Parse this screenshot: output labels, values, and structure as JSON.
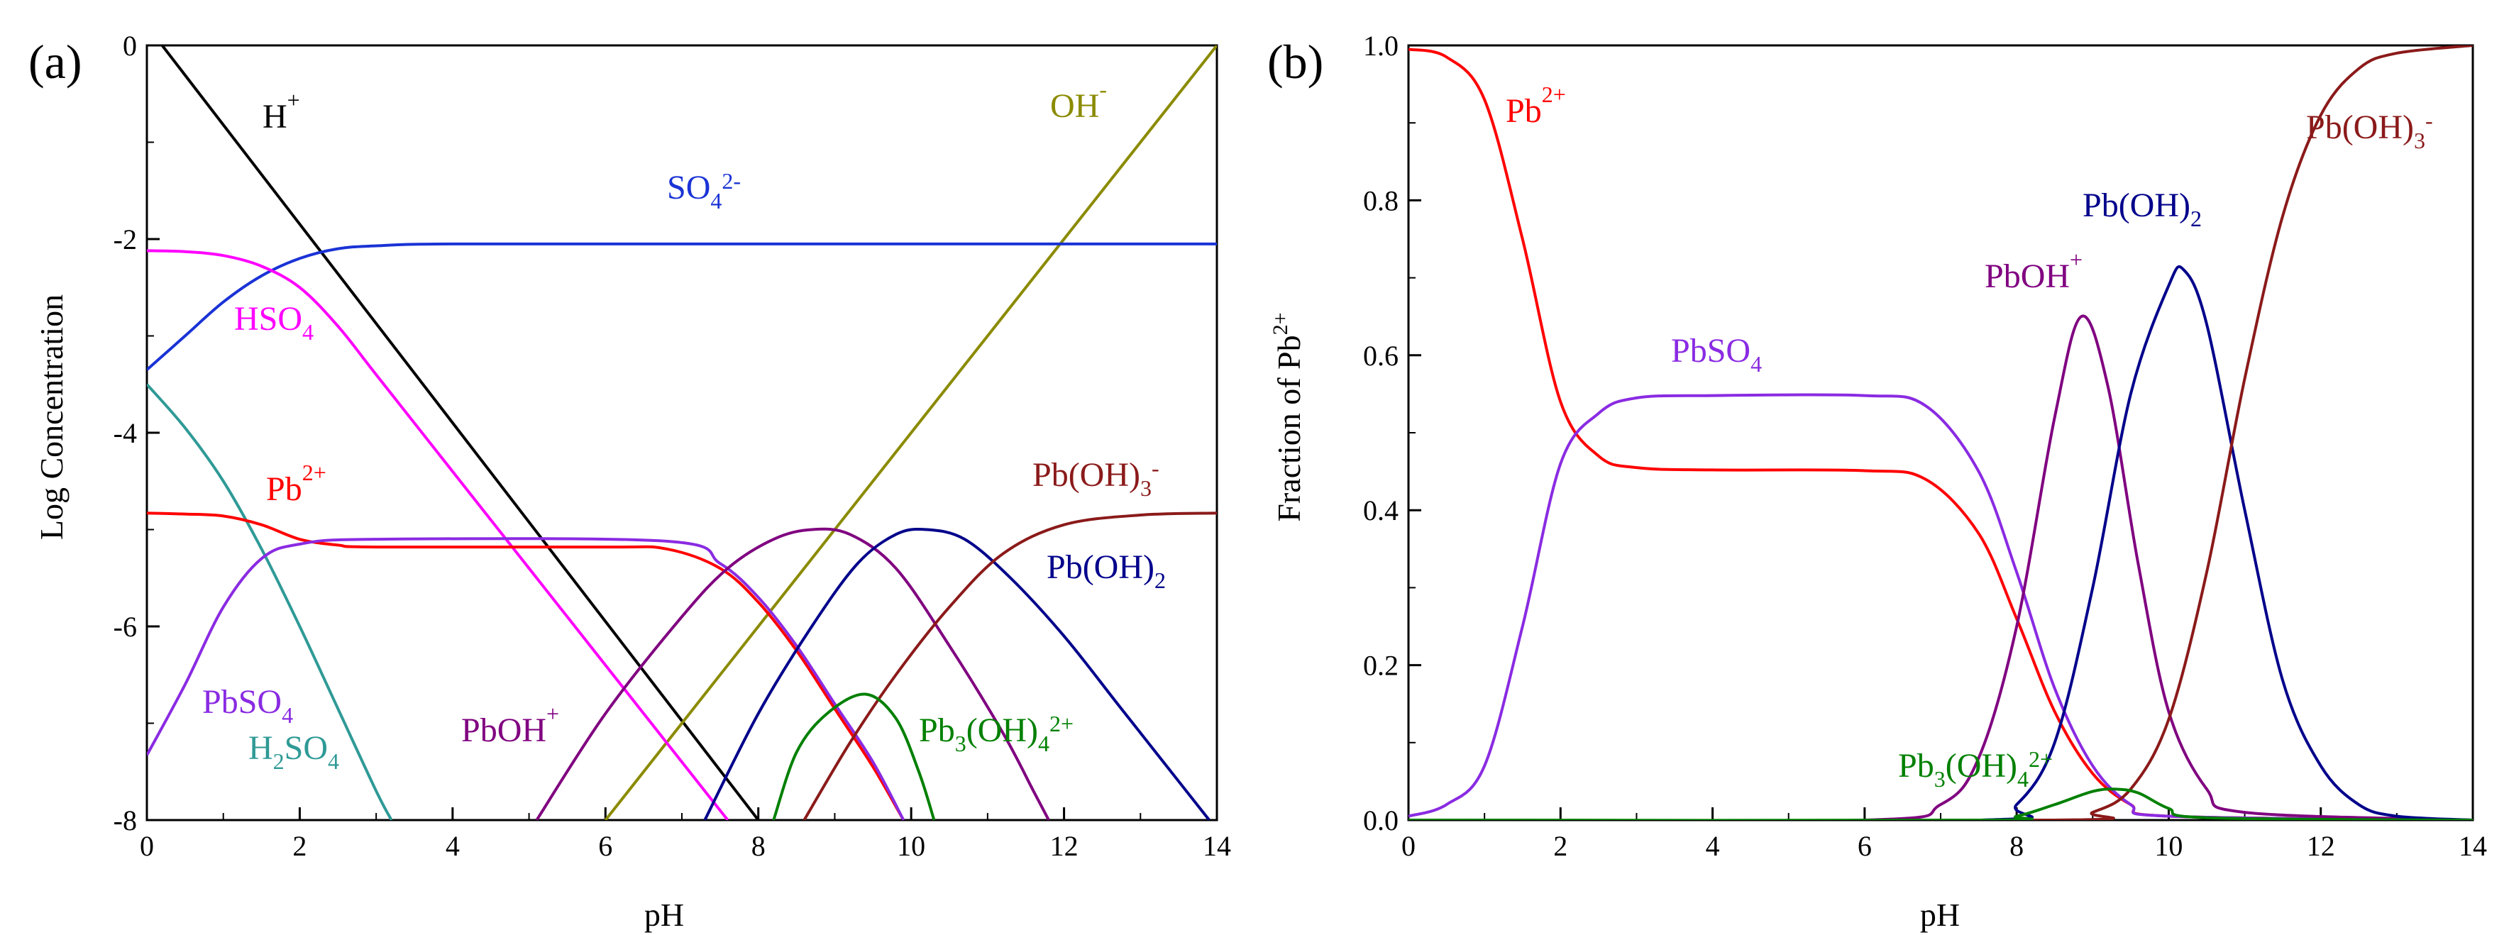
{
  "chart_data": [
    {
      "panel_label": "(a)",
      "type": "line",
      "xlabel": "pH",
      "ylabel": "Log Concentration",
      "xlim": [
        0,
        14
      ],
      "ylim": [
        -8,
        0
      ],
      "xticks": [
        "0",
        "2",
        "4",
        "6",
        "8",
        "10",
        "12",
        "14"
      ],
      "yticks": [
        "0",
        "-2",
        "-4",
        "-6",
        "-8"
      ],
      "series": [
        {
          "name": "H+",
          "label": "H",
          "sup": "+",
          "color": "#000000",
          "points": [
            [
              0.2,
              0
            ],
            [
              8,
              -8
            ]
          ]
        },
        {
          "name": "OH-",
          "label": "OH",
          "sup": "-",
          "color": "#8b8b00",
          "points": [
            [
              6,
              -8
            ],
            [
              14,
              0
            ]
          ]
        },
        {
          "name": "SO4 2-",
          "label": "SO",
          "sub": "4",
          "sup": "2-",
          "color": "#1a33d6",
          "points": [
            [
              0,
              -3.35
            ],
            [
              0.5,
              -3.0
            ],
            [
              1,
              -2.65
            ],
            [
              1.5,
              -2.38
            ],
            [
              2,
              -2.2
            ],
            [
              2.5,
              -2.1
            ],
            [
              3,
              -2.07
            ],
            [
              4,
              -2.05
            ],
            [
              8,
              -2.05
            ],
            [
              14,
              -2.05
            ]
          ]
        },
        {
          "name": "HSO4-",
          "label": "HSO",
          "sub": "4",
          "color": "#ff00ff",
          "points": [
            [
              0,
              -2.12
            ],
            [
              0.5,
              -2.13
            ],
            [
              1,
              -2.17
            ],
            [
              1.5,
              -2.28
            ],
            [
              2,
              -2.5
            ],
            [
              2.5,
              -2.9
            ],
            [
              3,
              -3.4
            ],
            [
              4,
              -4.4
            ],
            [
              5,
              -5.4
            ],
            [
              6,
              -6.4
            ],
            [
              7,
              -7.4
            ],
            [
              7.6,
              -8
            ]
          ]
        },
        {
          "name": "H2SO4",
          "label": "H",
          "sub1": "2",
          "mid": "SO",
          "sub": "4",
          "color": "#2f9a96",
          "points": [
            [
              0,
              -3.5
            ],
            [
              0.5,
              -3.95
            ],
            [
              1,
              -4.5
            ],
            [
              1.5,
              -5.2
            ],
            [
              2,
              -6.0
            ],
            [
              2.5,
              -6.85
            ],
            [
              3,
              -7.7
            ],
            [
              3.2,
              -8
            ]
          ]
        },
        {
          "name": "Pb2+",
          "label": "Pb",
          "sup": "2+",
          "color": "#ff0000",
          "points": [
            [
              0,
              -4.83
            ],
            [
              0.5,
              -4.84
            ],
            [
              1,
              -4.86
            ],
            [
              1.5,
              -4.95
            ],
            [
              2,
              -5.1
            ],
            [
              2.5,
              -5.16
            ],
            [
              3,
              -5.18
            ],
            [
              6,
              -5.18
            ],
            [
              6.8,
              -5.2
            ],
            [
              7.5,
              -5.4
            ],
            [
              8,
              -5.75
            ],
            [
              8.5,
              -6.25
            ],
            [
              9,
              -6.85
            ],
            [
              9.5,
              -7.45
            ],
            [
              9.9,
              -8
            ]
          ]
        },
        {
          "name": "PbSO4",
          "label": "PbSO",
          "sub": "4",
          "color": "#8a2be2",
          "points": [
            [
              0,
              -7.33
            ],
            [
              0.5,
              -6.6
            ],
            [
              1,
              -5.8
            ],
            [
              1.5,
              -5.3
            ],
            [
              2,
              -5.15
            ],
            [
              3,
              -5.1
            ],
            [
              6.8,
              -5.12
            ],
            [
              7.5,
              -5.35
            ],
            [
              8,
              -5.7
            ],
            [
              8.5,
              -6.2
            ],
            [
              9,
              -6.8
            ],
            [
              9.5,
              -7.4
            ],
            [
              9.9,
              -8
            ]
          ]
        },
        {
          "name": "PbOH+",
          "label": "PbOH",
          "sup": "+",
          "color": "#800080",
          "points": [
            [
              5.1,
              -8
            ],
            [
              6,
              -6.9
            ],
            [
              7,
              -5.9
            ],
            [
              7.6,
              -5.4
            ],
            [
              8.2,
              -5.1
            ],
            [
              8.7,
              -5.0
            ],
            [
              9.2,
              -5.05
            ],
            [
              9.8,
              -5.4
            ],
            [
              10.5,
              -6.2
            ],
            [
              11.2,
              -7.1
            ],
            [
              11.6,
              -7.7
            ],
            [
              11.8,
              -8
            ]
          ]
        },
        {
          "name": "Pb(OH)2",
          "label": "Pb(OH)",
          "sub": "2",
          "color": "#00008b",
          "points": [
            [
              7.3,
              -8
            ],
            [
              8,
              -6.9
            ],
            [
              8.7,
              -6.0
            ],
            [
              9.3,
              -5.35
            ],
            [
              9.8,
              -5.05
            ],
            [
              10.2,
              -5.0
            ],
            [
              10.7,
              -5.1
            ],
            [
              11.3,
              -5.5
            ],
            [
              12,
              -6.1
            ],
            [
              12.7,
              -6.8
            ],
            [
              13.3,
              -7.4
            ],
            [
              13.9,
              -8
            ]
          ]
        },
        {
          "name": "Pb(OH)3-",
          "label": "Pb(OH)",
          "sub": "3",
          "sup": "-",
          "color": "#8b1a1a",
          "points": [
            [
              8.6,
              -8
            ],
            [
              9.2,
              -7.2
            ],
            [
              9.8,
              -6.5
            ],
            [
              10.5,
              -5.8
            ],
            [
              11.2,
              -5.25
            ],
            [
              12,
              -4.95
            ],
            [
              13,
              -4.85
            ],
            [
              14,
              -4.83
            ]
          ]
        },
        {
          "name": "Pb3(OH)4 2+",
          "label": "Pb",
          "sub1": "3",
          "mid": "(OH)",
          "sub": "4",
          "sup": "2+",
          "color": "#008000",
          "points": [
            [
              8.2,
              -8
            ],
            [
              8.5,
              -7.3
            ],
            [
              8.9,
              -6.9
            ],
            [
              9.4,
              -6.7
            ],
            [
              9.8,
              -6.95
            ],
            [
              10.1,
              -7.5
            ],
            [
              10.3,
              -8
            ]
          ]
        }
      ]
    },
    {
      "panel_label": "(b)",
      "type": "line",
      "xlabel": "pH",
      "ylabel": "Fraction of Pb",
      "ylabel_sup": "2+",
      "xlim": [
        0,
        14
      ],
      "ylim": [
        0,
        1
      ],
      "xticks": [
        "0",
        "2",
        "4",
        "6",
        "8",
        "10",
        "12",
        "14"
      ],
      "yticks": [
        "0.0",
        "0.2",
        "0.4",
        "0.6",
        "0.8",
        "1.0"
      ],
      "series": [
        {
          "name": "Pb2+",
          "label": "Pb",
          "sup": "2+",
          "color": "#ff0000",
          "points": [
            [
              0,
              0.995
            ],
            [
              0.5,
              0.985
            ],
            [
              1,
              0.93
            ],
            [
              1.5,
              0.75
            ],
            [
              2,
              0.54
            ],
            [
              2.5,
              0.47
            ],
            [
              3,
              0.455
            ],
            [
              4,
              0.452
            ],
            [
              6,
              0.451
            ],
            [
              6.8,
              0.44
            ],
            [
              7.5,
              0.37
            ],
            [
              8,
              0.26
            ],
            [
              8.5,
              0.14
            ],
            [
              9,
              0.06
            ],
            [
              9.5,
              0.02
            ],
            [
              10,
              0.005
            ],
            [
              14,
              0
            ]
          ]
        },
        {
          "name": "PbSO4",
          "label": "PbSO",
          "sub": "4",
          "color": "#8a2be2",
          "points": [
            [
              0,
              0.005
            ],
            [
              0.5,
              0.02
            ],
            [
              1,
              0.07
            ],
            [
              1.5,
              0.25
            ],
            [
              2,
              0.46
            ],
            [
              2.5,
              0.525
            ],
            [
              3,
              0.545
            ],
            [
              4,
              0.548
            ],
            [
              6,
              0.548
            ],
            [
              6.8,
              0.535
            ],
            [
              7.5,
              0.45
            ],
            [
              8,
              0.32
            ],
            [
              8.5,
              0.17
            ],
            [
              9,
              0.07
            ],
            [
              9.5,
              0.02
            ],
            [
              10,
              0.005
            ],
            [
              14,
              0
            ]
          ]
        },
        {
          "name": "PbOH+",
          "label": "PbOH",
          "sup": "+",
          "color": "#800080",
          "points": [
            [
              0,
              0
            ],
            [
              6,
              0
            ],
            [
              7,
              0.02
            ],
            [
              7.5,
              0.08
            ],
            [
              8,
              0.25
            ],
            [
              8.5,
              0.52
            ],
            [
              8.85,
              0.65
            ],
            [
              9.2,
              0.56
            ],
            [
              9.6,
              0.33
            ],
            [
              10,
              0.14
            ],
            [
              10.5,
              0.04
            ],
            [
              11,
              0.01
            ],
            [
              14,
              0
            ]
          ]
        },
        {
          "name": "Pb(OH)2",
          "label": "Pb(OH)",
          "sub": "2",
          "color": "#00008b",
          "points": [
            [
              0,
              0
            ],
            [
              7.5,
              0
            ],
            [
              8,
              0.02
            ],
            [
              8.5,
              0.1
            ],
            [
              9,
              0.3
            ],
            [
              9.5,
              0.55
            ],
            [
              10,
              0.69
            ],
            [
              10.2,
              0.71
            ],
            [
              10.5,
              0.64
            ],
            [
              11,
              0.4
            ],
            [
              11.5,
              0.18
            ],
            [
              12,
              0.07
            ],
            [
              12.5,
              0.02
            ],
            [
              13,
              0.005
            ],
            [
              14,
              0
            ]
          ]
        },
        {
          "name": "Pb(OH)3-",
          "label": "Pb(OH)",
          "sub": "3",
          "sup": "-",
          "color": "#8b1a1a",
          "points": [
            [
              0,
              0
            ],
            [
              8.5,
              0
            ],
            [
              9,
              0.01
            ],
            [
              9.5,
              0.04
            ],
            [
              10,
              0.13
            ],
            [
              10.5,
              0.32
            ],
            [
              11,
              0.57
            ],
            [
              11.5,
              0.78
            ],
            [
              12,
              0.91
            ],
            [
              12.5,
              0.97
            ],
            [
              13,
              0.99
            ],
            [
              14,
              1.0
            ]
          ]
        },
        {
          "name": "Pb3(OH)4 2+",
          "label": "Pb",
          "sub1": "3",
          "mid": "(OH)",
          "sub": "4",
          "sup": "2+",
          "color": "#008000",
          "points": [
            [
              0,
              0
            ],
            [
              7.5,
              0
            ],
            [
              8,
              0.005
            ],
            [
              8.5,
              0.02
            ],
            [
              9,
              0.037
            ],
            [
              9.3,
              0.04
            ],
            [
              9.6,
              0.035
            ],
            [
              10,
              0.015
            ],
            [
              10.5,
              0.003
            ],
            [
              14,
              0
            ]
          ]
        }
      ]
    }
  ]
}
